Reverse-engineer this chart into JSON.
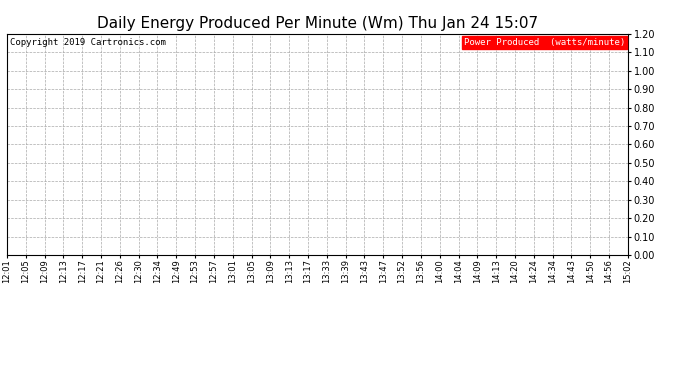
{
  "title": "Daily Energy Produced Per Minute (Wm) Thu Jan 24 15:07",
  "copyright_text": "Copyright 2019 Cartronics.com",
  "legend_label": "Power Produced  (watts/minute)",
  "legend_bg": "#ff0000",
  "legend_fg": "#ffffff",
  "ylim": [
    0.0,
    1.2
  ],
  "yticks": [
    0.0,
    0.1,
    0.2,
    0.3,
    0.4,
    0.5,
    0.6,
    0.7,
    0.8,
    0.9,
    1.0,
    1.1,
    1.2
  ],
  "x_labels": [
    "12:01",
    "12:05",
    "12:09",
    "12:13",
    "12:17",
    "12:21",
    "12:26",
    "12:30",
    "12:34",
    "12:49",
    "12:53",
    "12:57",
    "13:01",
    "13:05",
    "13:09",
    "13:13",
    "13:17",
    "13:33",
    "13:39",
    "13:43",
    "13:47",
    "13:52",
    "13:56",
    "14:00",
    "14:04",
    "14:09",
    "14:13",
    "14:20",
    "14:24",
    "14:34",
    "14:43",
    "14:50",
    "14:56",
    "15:02"
  ],
  "background_color": "#ffffff",
  "plot_bg": "#ffffff",
  "grid_color": "#aaaaaa",
  "grid_style": "--",
  "grid_linewidth": 0.5,
  "title_fontsize": 11,
  "tick_fontsize": 6,
  "copyright_fontsize": 6.5,
  "legend_fontsize": 6.5
}
